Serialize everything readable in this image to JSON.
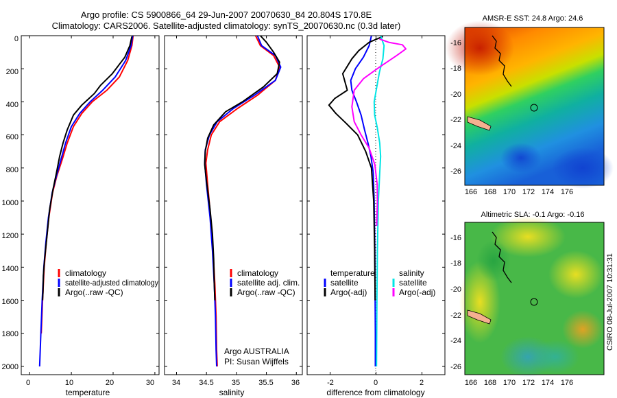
{
  "header": {
    "line1": "Argo profile: CS 5900866_64 29-Jun-2007 20070630_84 20.804S 170.8E",
    "line2": "Climatology: CARS2006. Satellite-adjusted climatology: synTS_20070630.nc (0.3d later)"
  },
  "side_label": "CSIRO 08-Jul-2007 10:31:31",
  "colors": {
    "climatology": "#ff0000",
    "satellite": "#0000ff",
    "argo": "#000000",
    "sat_salinity": "#00e5e5",
    "argo_salinity": "#ff00ff"
  },
  "chart_data": [
    {
      "type": "line",
      "id": "temperature",
      "xlabel": "temperature",
      "ylabel": "",
      "xlim": [
        -2,
        31
      ],
      "ylim": [
        2050,
        0
      ],
      "x_ticks": [
        "0",
        "10",
        "20",
        "30"
      ],
      "x_tick_values": [
        0,
        10,
        20,
        30
      ],
      "y_ticks": [
        "0",
        "200",
        "400",
        "600",
        "800",
        "1000",
        "1200",
        "1400",
        "1600",
        "1800",
        "2000"
      ],
      "y_tick_values": [
        0,
        200,
        400,
        600,
        800,
        1000,
        1200,
        1400,
        1600,
        1800,
        2000
      ],
      "legend": [
        "climatology",
        "satellite-adjusted climatology",
        "Argo(..raw -QC)"
      ],
      "series": [
        {
          "name": "climatology",
          "color": "#ff0000",
          "points": [
            [
              24.8,
              0
            ],
            [
              24.5,
              60
            ],
            [
              23.5,
              150
            ],
            [
              21.5,
              250
            ],
            [
              18.5,
              330
            ],
            [
              15,
              400
            ],
            [
              12.5,
              470
            ],
            [
              10.5,
              550
            ],
            [
              9,
              650
            ],
            [
              7.8,
              750
            ],
            [
              6.5,
              850
            ],
            [
              5.5,
              950
            ],
            [
              4.6,
              1100
            ],
            [
              4,
              1250
            ],
            [
              3.5,
              1400
            ],
            [
              3.1,
              1600
            ],
            [
              2.8,
              1800
            ]
          ]
        },
        {
          "name": "satellite",
          "color": "#0000ff",
          "points": [
            [
              24.7,
              0
            ],
            [
              24.3,
              60
            ],
            [
              23,
              150
            ],
            [
              20.5,
              250
            ],
            [
              17.5,
              330
            ],
            [
              14.5,
              400
            ],
            [
              12,
              470
            ],
            [
              10,
              550
            ],
            [
              8.6,
              650
            ],
            [
              7.5,
              750
            ],
            [
              6.4,
              850
            ],
            [
              5.4,
              950
            ],
            [
              4.5,
              1100
            ],
            [
              3.9,
              1250
            ],
            [
              3.4,
              1400
            ],
            [
              3,
              1600
            ],
            [
              2.7,
              1800
            ],
            [
              2.4,
              2000
            ]
          ]
        },
        {
          "name": "Argo(..raw -QC)",
          "color": "#000000",
          "points": [
            [
              24.5,
              5
            ],
            [
              24,
              60
            ],
            [
              22.8,
              130
            ],
            [
              19.8,
              230
            ],
            [
              17,
              300
            ],
            [
              15.5,
              350
            ],
            [
              12.5,
              420
            ],
            [
              10.5,
              480
            ],
            [
              9,
              570
            ],
            [
              8,
              650
            ],
            [
              7.2,
              730
            ],
            [
              6.5,
              820
            ],
            [
              5.6,
              930
            ],
            [
              4.8,
              1050
            ],
            [
              4.2,
              1200
            ],
            [
              3.6,
              1350
            ],
            [
              3.3,
              1450
            ],
            [
              3.2,
              1550
            ],
            [
              3.1,
              1600
            ]
          ]
        }
      ]
    },
    {
      "type": "line",
      "id": "salinity",
      "xlabel": "salinity",
      "xlim": [
        33.8,
        36.1
      ],
      "ylim": [
        2050,
        0
      ],
      "x_ticks": [
        "34",
        "34.5",
        "35",
        "35.5",
        "36"
      ],
      "x_tick_values": [
        34,
        34.5,
        35,
        35.5,
        36
      ],
      "legend": [
        "climatology",
        "satellite adj. clim.",
        "Argo(..raw -QC)"
      ],
      "annotation": [
        "Argo AUSTRALIA",
        "PI: Susan Wijffels"
      ],
      "series": [
        {
          "name": "climatology",
          "color": "#ff0000",
          "points": [
            [
              35.32,
              0
            ],
            [
              35.4,
              60
            ],
            [
              35.62,
              120
            ],
            [
              35.72,
              190
            ],
            [
              35.65,
              270
            ],
            [
              35.35,
              360
            ],
            [
              35.02,
              440
            ],
            [
              34.72,
              520
            ],
            [
              34.58,
              600
            ],
            [
              34.52,
              690
            ],
            [
              34.49,
              770
            ],
            [
              34.52,
              900
            ],
            [
              34.57,
              1100
            ],
            [
              34.61,
              1300
            ],
            [
              34.64,
              1500
            ],
            [
              34.66,
              1700
            ],
            [
              34.67,
              1900
            ],
            [
              34.68,
              2000
            ]
          ]
        },
        {
          "name": "satellite",
          "color": "#0000ff",
          "points": [
            [
              35.35,
              0
            ],
            [
              35.42,
              60
            ],
            [
              35.65,
              120
            ],
            [
              35.74,
              190
            ],
            [
              35.65,
              270
            ],
            [
              35.3,
              360
            ],
            [
              34.95,
              440
            ],
            [
              34.68,
              520
            ],
            [
              34.55,
              600
            ],
            [
              34.48,
              690
            ],
            [
              34.47,
              770
            ],
            [
              34.5,
              900
            ],
            [
              34.56,
              1100
            ],
            [
              34.6,
              1300
            ],
            [
              34.63,
              1500
            ],
            [
              34.65,
              1700
            ],
            [
              34.66,
              1900
            ],
            [
              34.67,
              2000
            ]
          ]
        },
        {
          "name": "Argo(..raw -QC)",
          "color": "#000000",
          "points": [
            [
              35.4,
              0
            ],
            [
              35.5,
              40
            ],
            [
              35.62,
              100
            ],
            [
              35.72,
              160
            ],
            [
              35.68,
              230
            ],
            [
              35.45,
              310
            ],
            [
              35.1,
              400
            ],
            [
              34.82,
              460
            ],
            [
              34.62,
              540
            ],
            [
              34.52,
              620
            ],
            [
              34.48,
              700
            ],
            [
              34.47,
              780
            ],
            [
              34.5,
              880
            ],
            [
              34.56,
              1050
            ],
            [
              34.6,
              1200
            ],
            [
              34.62,
              1350
            ],
            [
              34.63,
              1500
            ],
            [
              34.64,
              1600
            ]
          ]
        }
      ]
    },
    {
      "type": "line",
      "id": "difference",
      "xlabel": "difference from climatology",
      "xlim": [
        -3,
        3
      ],
      "ylim": [
        2050,
        0
      ],
      "x_ticks": [
        "-2",
        "0",
        "2"
      ],
      "x_tick_values": [
        -2,
        0,
        2
      ],
      "legend_left_title": "temperature",
      "legend_left": [
        "satellite",
        "Argo(-adj)"
      ],
      "legend_right_title": "salinity",
      "legend_right": [
        "satellite",
        "Argo(-adj)"
      ],
      "series": [
        {
          "name": "temperature satellite",
          "color": "#0000ff",
          "points": [
            [
              -0.2,
              0
            ],
            [
              -0.3,
              60
            ],
            [
              -0.55,
              130
            ],
            [
              -0.9,
              200
            ],
            [
              -1.1,
              270
            ],
            [
              -1.05,
              330
            ],
            [
              -0.85,
              400
            ],
            [
              -0.65,
              480
            ],
            [
              -0.5,
              570
            ],
            [
              -0.35,
              650
            ],
            [
              -0.22,
              730
            ],
            [
              -0.12,
              830
            ],
            [
              -0.08,
              1000
            ],
            [
              -0.05,
              1300
            ],
            [
              -0.04,
              1600
            ],
            [
              -0.03,
              1800
            ],
            [
              -0.03,
              2000
            ]
          ]
        },
        {
          "name": "temperature Argo(-adj)",
          "color": "#000000",
          "points": [
            [
              0.3,
              5
            ],
            [
              -0.3,
              40
            ],
            [
              -0.75,
              90
            ],
            [
              -1.05,
              140
            ],
            [
              -1.45,
              230
            ],
            [
              -1.25,
              330
            ],
            [
              -1.8,
              380
            ],
            [
              -2.05,
              420
            ],
            [
              -1.75,
              470
            ],
            [
              -1.3,
              530
            ],
            [
              -0.8,
              600
            ],
            [
              -0.45,
              700
            ],
            [
              -0.2,
              800
            ],
            [
              -0.1,
              1000
            ],
            [
              -0.06,
              1300
            ],
            [
              -0.04,
              1600
            ]
          ]
        },
        {
          "name": "salinity satellite",
          "color": "#00e5e5",
          "points": [
            [
              0.2,
              0
            ],
            [
              0.35,
              60
            ],
            [
              0.3,
              140
            ],
            [
              0.15,
              220
            ],
            [
              0.02,
              320
            ],
            [
              -0.08,
              400
            ],
            [
              -0.06,
              480
            ],
            [
              0.06,
              560
            ],
            [
              0.16,
              650
            ],
            [
              0.2,
              730
            ],
            [
              0.16,
              830
            ],
            [
              0.1,
              1000
            ],
            [
              0.06,
              1300
            ],
            [
              0.04,
              1600
            ],
            [
              0.02,
              2000
            ]
          ]
        },
        {
          "name": "salinity Argo(-adj)",
          "color": "#ff00ff",
          "points": [
            [
              0.15,
              20
            ],
            [
              0.55,
              40
            ],
            [
              1.15,
              55
            ],
            [
              1.3,
              80
            ],
            [
              0.9,
              120
            ],
            [
              0.15,
              190
            ],
            [
              -0.55,
              260
            ],
            [
              -0.95,
              330
            ],
            [
              -1.05,
              430
            ],
            [
              -0.95,
              520
            ],
            [
              -0.65,
              600
            ],
            [
              -0.3,
              680
            ],
            [
              -0.05,
              780
            ],
            [
              0.05,
              900
            ],
            [
              0.06,
              1000
            ],
            [
              0.03,
              1150
            ]
          ]
        }
      ]
    }
  ],
  "maps": [
    {
      "id": "sst",
      "title": "AMSR-E SST: 24.8 Argo: 24.6",
      "x_ticks": [
        "166",
        "168",
        "170",
        "172",
        "174",
        "176"
      ],
      "y_ticks": [
        "-16",
        "-18",
        "-20",
        "-22",
        "-24",
        "-26"
      ]
    },
    {
      "id": "sla",
      "title": "Altimetric SLA: -0.1 Argo: -0.16",
      "x_ticks": [
        "166",
        "168",
        "170",
        "172",
        "174",
        "176"
      ],
      "y_ticks": [
        "-16",
        "-18",
        "-20",
        "-22",
        "-24",
        "-26"
      ]
    }
  ]
}
